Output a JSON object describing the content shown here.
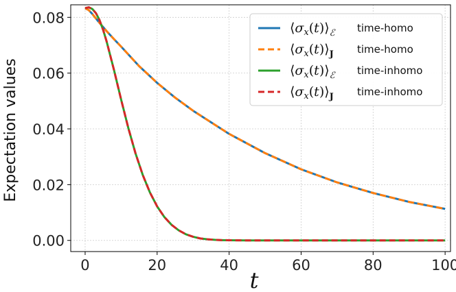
{
  "chart_data": {
    "type": "line",
    "title": "",
    "xlabel": "t",
    "ylabel": "Expectation values",
    "xlim": [
      -4,
      101.5
    ],
    "ylim": [
      -0.004,
      0.0845
    ],
    "xticks": [
      0,
      20,
      40,
      60,
      80,
      100
    ],
    "xtick_labels": [
      "0",
      "20",
      "40",
      "60",
      "80",
      "100"
    ],
    "yticks": [
      0.0,
      0.02,
      0.04,
      0.06,
      0.08
    ],
    "ytick_labels": [
      "0.00",
      "0.02",
      "0.04",
      "0.06",
      "0.08"
    ],
    "grid": true,
    "legend_position": "top-right",
    "series": [
      {
        "name": "time-homo",
        "expectation": "E",
        "color": "#1f77b4",
        "style": "solid",
        "x": [
          0,
          1,
          2,
          3,
          4,
          5,
          6,
          8,
          10,
          15,
          20,
          25,
          30,
          40,
          50,
          60,
          70,
          80,
          90,
          100
        ],
        "y": [
          0.0833,
          0.0826,
          0.0812,
          0.0796,
          0.078,
          0.0765,
          0.075,
          0.0722,
          0.0695,
          0.0625,
          0.0565,
          0.0512,
          0.0465,
          0.0382,
          0.0313,
          0.0255,
          0.0208,
          0.017,
          0.0138,
          0.0113
        ]
      },
      {
        "name": "time-homo",
        "expectation": "J",
        "color": "#ff7f0e",
        "style": "dashed",
        "x": [
          0,
          1,
          2,
          3,
          4,
          5,
          6,
          8,
          10,
          15,
          20,
          25,
          30,
          40,
          50,
          60,
          70,
          80,
          90,
          100
        ],
        "y": [
          0.0833,
          0.0826,
          0.0812,
          0.0796,
          0.078,
          0.0765,
          0.075,
          0.0722,
          0.0695,
          0.0625,
          0.0565,
          0.0512,
          0.0465,
          0.0382,
          0.0313,
          0.0255,
          0.0208,
          0.017,
          0.0138,
          0.0113
        ]
      },
      {
        "name": "time-inhomo",
        "expectation": "E",
        "color": "#2ca02c",
        "style": "solid",
        "x": [
          0,
          1,
          2,
          3,
          4,
          5,
          6,
          8,
          10,
          12,
          14,
          16,
          18,
          20,
          22,
          24,
          26,
          28,
          30,
          32,
          34,
          36,
          38,
          40,
          45,
          50,
          60,
          70,
          80,
          90,
          100
        ],
        "y": [
          0.0833,
          0.0836,
          0.083,
          0.0815,
          0.079,
          0.0755,
          0.0712,
          0.0612,
          0.0505,
          0.0403,
          0.0312,
          0.0235,
          0.0172,
          0.0122,
          0.0084,
          0.0056,
          0.0036,
          0.0022,
          0.0013,
          0.0007,
          0.0004,
          0.0002,
          0.0001,
          5e-05,
          0.0,
          0.0,
          0.0,
          0.0,
          0.0,
          0.0,
          0.0
        ]
      },
      {
        "name": "time-inhomo",
        "expectation": "J",
        "color": "#d62728",
        "style": "dashed",
        "x": [
          0,
          1,
          2,
          3,
          4,
          5,
          6,
          8,
          10,
          12,
          14,
          16,
          18,
          20,
          22,
          24,
          26,
          28,
          30,
          32,
          34,
          36,
          38,
          40,
          45,
          50,
          60,
          70,
          80,
          90,
          100
        ],
        "y": [
          0.0833,
          0.0836,
          0.083,
          0.0815,
          0.079,
          0.0755,
          0.0712,
          0.0612,
          0.0505,
          0.0403,
          0.0312,
          0.0235,
          0.0172,
          0.0122,
          0.0084,
          0.0056,
          0.0036,
          0.0022,
          0.0013,
          0.0007,
          0.0004,
          0.0002,
          0.0001,
          5e-05,
          0.0,
          0.0,
          0.0,
          0.0,
          0.0,
          0.0,
          0.0
        ]
      }
    ]
  }
}
